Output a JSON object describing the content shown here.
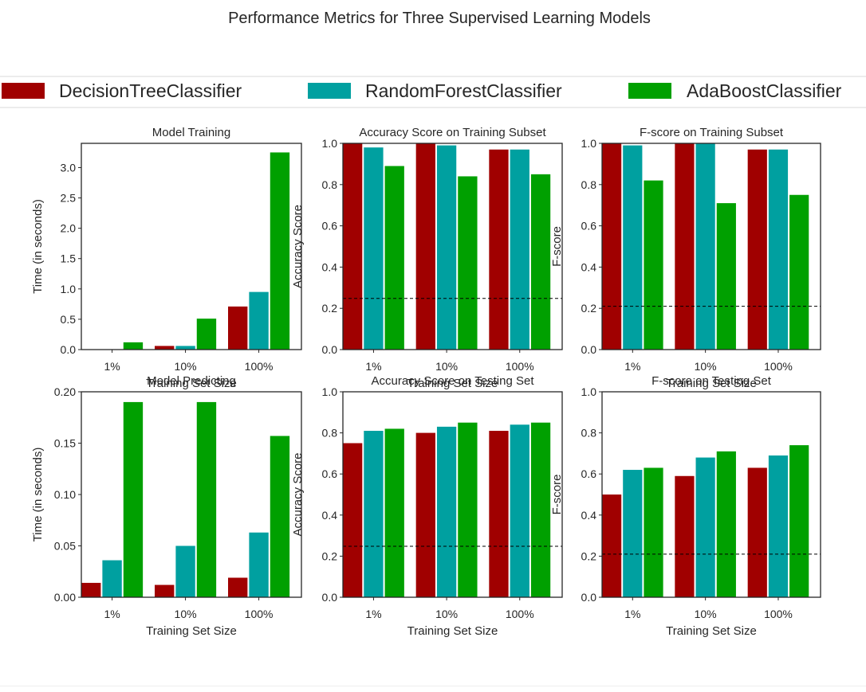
{
  "figure_title": "Performance Metrics for Three Supervised Learning Models",
  "colors": {
    "DecisionTreeClassifier": "#a00000",
    "RandomForestClassifier": "#00a0a0",
    "AdaBoostClassifier": "#00a000",
    "baseline": "#000000",
    "axes": "#262626"
  },
  "legend": {
    "placement": "top, spanning figure width",
    "entries": [
      "DecisionTreeClassifier",
      "RandomForestClassifier",
      "AdaBoostClassifier"
    ]
  },
  "chart_data": [
    {
      "type": "bar",
      "title": "Model Training",
      "xlabel": "Training Set Size",
      "ylabel": "Time (in seconds)",
      "categories": [
        "1%",
        "10%",
        "100%"
      ],
      "ylim": [
        0,
        3.4
      ],
      "yticks": [
        0.0,
        0.5,
        1.0,
        1.5,
        2.0,
        2.5,
        3.0
      ],
      "ytick_labels": [
        "0.0",
        "0.5",
        "1.0",
        "1.5",
        "2.0",
        "2.5",
        "3.0"
      ],
      "series": [
        {
          "name": "DecisionTreeClassifier",
          "values": [
            0.003,
            0.06,
            0.71
          ]
        },
        {
          "name": "RandomForestClassifier",
          "values": [
            0.005,
            0.06,
            0.95
          ]
        },
        {
          "name": "AdaBoostClassifier",
          "values": [
            0.12,
            0.51,
            3.25
          ]
        }
      ],
      "baseline": null
    },
    {
      "type": "bar",
      "title": "Accuracy Score on Training Subset",
      "xlabel": "Training Set Size",
      "ylabel": "Accuracy Score",
      "categories": [
        "1%",
        "10%",
        "100%"
      ],
      "ylim": [
        0,
        1.0
      ],
      "yticks": [
        0.0,
        0.2,
        0.4,
        0.6,
        0.8,
        1.0
      ],
      "ytick_labels": [
        "0.0",
        "0.2",
        "0.4",
        "0.6",
        "0.8",
        "1.0"
      ],
      "series": [
        {
          "name": "DecisionTreeClassifier",
          "values": [
            1.0,
            1.0,
            0.97
          ]
        },
        {
          "name": "RandomForestClassifier",
          "values": [
            0.98,
            0.99,
            0.97
          ]
        },
        {
          "name": "AdaBoostClassifier",
          "values": [
            0.89,
            0.84,
            0.85
          ]
        }
      ],
      "baseline": 0.248
    },
    {
      "type": "bar",
      "title": "F-score on Training Subset",
      "xlabel": "Training Set Size",
      "ylabel": "F-score",
      "categories": [
        "1%",
        "10%",
        "100%"
      ],
      "ylim": [
        0,
        1.0
      ],
      "yticks": [
        0.0,
        0.2,
        0.4,
        0.6,
        0.8,
        1.0
      ],
      "ytick_labels": [
        "0.0",
        "0.2",
        "0.4",
        "0.6",
        "0.8",
        "1.0"
      ],
      "series": [
        {
          "name": "DecisionTreeClassifier",
          "values": [
            1.0,
            1.0,
            0.97
          ]
        },
        {
          "name": "RandomForestClassifier",
          "values": [
            0.99,
            1.0,
            0.97
          ]
        },
        {
          "name": "AdaBoostClassifier",
          "values": [
            0.82,
            0.71,
            0.75
          ]
        }
      ],
      "baseline": 0.21
    },
    {
      "type": "bar",
      "title": "Model Predicting",
      "xlabel": "Training Set Size",
      "ylabel": "Time (in seconds)",
      "categories": [
        "1%",
        "10%",
        "100%"
      ],
      "ylim": [
        0,
        0.2
      ],
      "yticks": [
        0.0,
        0.05,
        0.1,
        0.15,
        0.2
      ],
      "ytick_labels": [
        "0.00",
        "0.05",
        "0.10",
        "0.15",
        "0.20"
      ],
      "series": [
        {
          "name": "DecisionTreeClassifier",
          "values": [
            0.014,
            0.012,
            0.019
          ]
        },
        {
          "name": "RandomForestClassifier",
          "values": [
            0.036,
            0.05,
            0.063
          ]
        },
        {
          "name": "AdaBoostClassifier",
          "values": [
            0.19,
            0.19,
            0.157
          ]
        }
      ],
      "baseline": null
    },
    {
      "type": "bar",
      "title": "Accuracy Score on Testing Set",
      "xlabel": "Training Set Size",
      "ylabel": "Accuracy Score",
      "categories": [
        "1%",
        "10%",
        "100%"
      ],
      "ylim": [
        0,
        1.0
      ],
      "yticks": [
        0.0,
        0.2,
        0.4,
        0.6,
        0.8,
        1.0
      ],
      "ytick_labels": [
        "0.0",
        "0.2",
        "0.4",
        "0.6",
        "0.8",
        "1.0"
      ],
      "series": [
        {
          "name": "DecisionTreeClassifier",
          "values": [
            0.75,
            0.8,
            0.81
          ]
        },
        {
          "name": "RandomForestClassifier",
          "values": [
            0.81,
            0.83,
            0.84
          ]
        },
        {
          "name": "AdaBoostClassifier",
          "values": [
            0.82,
            0.85,
            0.85
          ]
        }
      ],
      "baseline": 0.248
    },
    {
      "type": "bar",
      "title": "F-score on Testing Set",
      "xlabel": "Training Set Size",
      "ylabel": "F-score",
      "categories": [
        "1%",
        "10%",
        "100%"
      ],
      "ylim": [
        0,
        1.0
      ],
      "yticks": [
        0.0,
        0.2,
        0.4,
        0.6,
        0.8,
        1.0
      ],
      "ytick_labels": [
        "0.0",
        "0.2",
        "0.4",
        "0.6",
        "0.8",
        "1.0"
      ],
      "series": [
        {
          "name": "DecisionTreeClassifier",
          "values": [
            0.5,
            0.59,
            0.63
          ]
        },
        {
          "name": "RandomForestClassifier",
          "values": [
            0.62,
            0.68,
            0.69
          ]
        },
        {
          "name": "AdaBoostClassifier",
          "values": [
            0.63,
            0.71,
            0.74
          ]
        }
      ],
      "baseline": 0.21
    }
  ]
}
